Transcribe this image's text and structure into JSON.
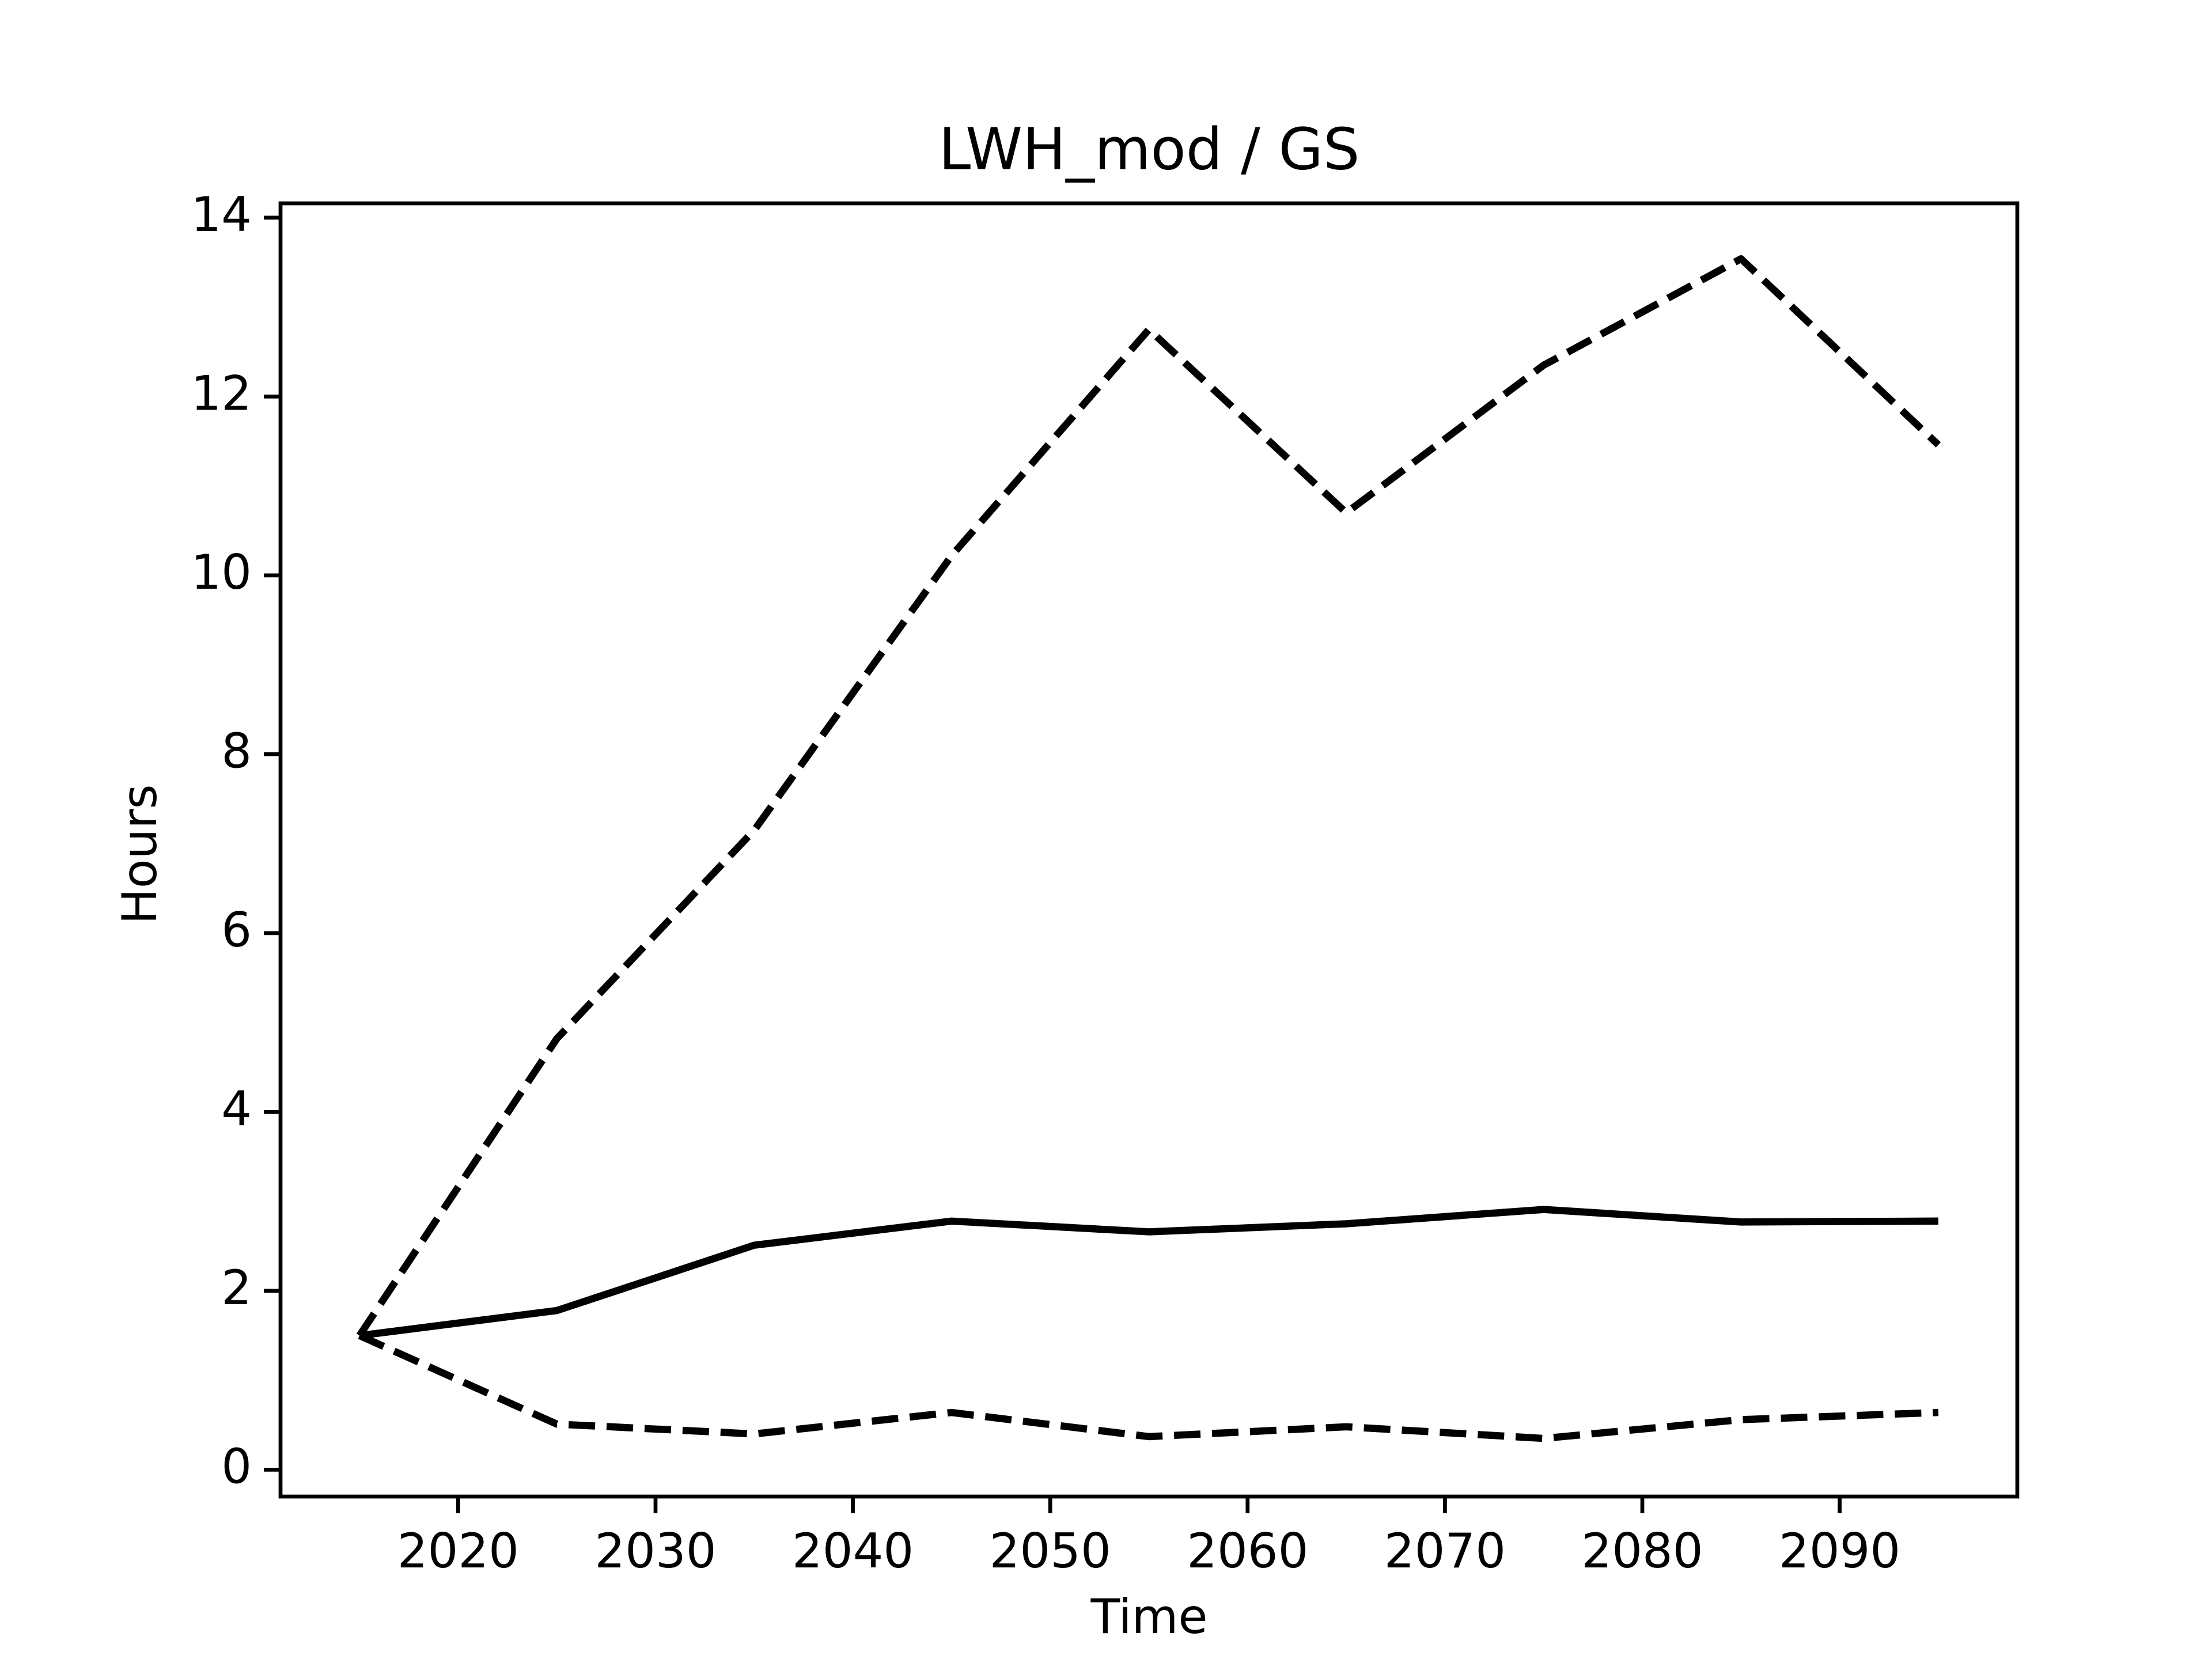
{
  "chart_data": {
    "type": "line",
    "title": "LWH_mod / GS",
    "x_label": "Time",
    "y_label": "Hours",
    "x": [
      2015,
      2025,
      2035,
      2045,
      2055,
      2065,
      2075,
      2085,
      2095
    ],
    "series": [
      {
        "color": "#000000",
        "linestyle": "solid",
        "values": [
          1.5,
          1.78,
          2.51,
          2.78,
          2.66,
          2.75,
          2.91,
          2.77,
          2.78
        ]
      },
      {
        "color": "#000000",
        "linestyle": "dashed",
        "values": [
          1.5,
          4.82,
          7.15,
          10.22,
          12.75,
          10.7,
          12.35,
          13.54,
          11.46
        ]
      },
      {
        "color": "#000000",
        "linestyle": "dashed",
        "values": [
          1.5,
          0.51,
          0.4,
          0.64,
          0.37,
          0.48,
          0.35,
          0.56,
          0.64
        ]
      }
    ],
    "xlim": [
      2011,
      2099
    ],
    "xticks": [
      2020,
      2030,
      2040,
      2050,
      2060,
      2070,
      2080,
      2090
    ],
    "ylim": [
      -0.3,
      14.16
    ],
    "yticks": [
      0,
      2,
      4,
      6,
      8,
      10,
      12,
      14
    ],
    "grid": false
  }
}
